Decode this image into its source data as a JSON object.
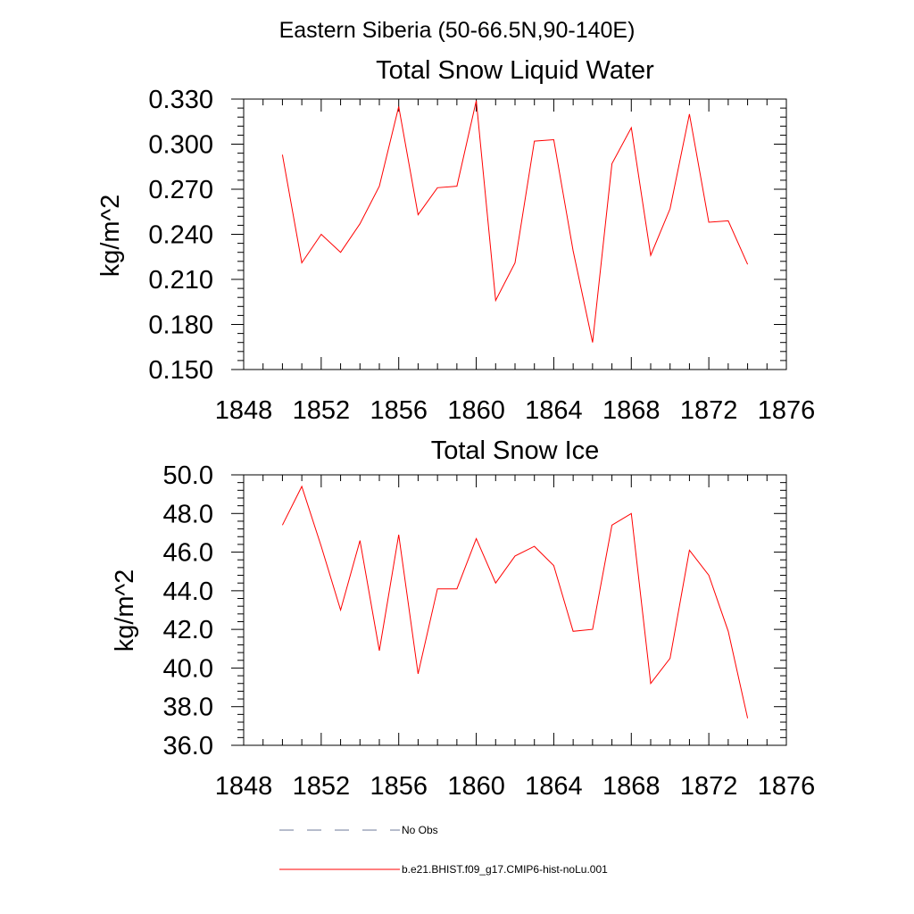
{
  "figure": {
    "title": "Eastern Siberia (50-66.5N,90-140E)"
  },
  "colors": {
    "series_line": "#ff0000",
    "obs_line": "#6c7a9a",
    "axis": "#000000"
  },
  "legend": {
    "items": [
      {
        "label": "No Obs",
        "color": "#6c7a9a",
        "style": "dashed"
      },
      {
        "label": "b.e21.BHIST.f09_g17.CMIP6-hist-noLu.001",
        "color": "#ff0000",
        "style": "solid"
      }
    ]
  },
  "chart_data": [
    {
      "type": "line",
      "title": "Total Snow Liquid Water",
      "xlabel": "",
      "ylabel": "kg/m^2",
      "xlim": [
        1848,
        1876
      ],
      "ylim": [
        0.15,
        0.33
      ],
      "x_ticks": [
        1848,
        1852,
        1856,
        1860,
        1864,
        1868,
        1872,
        1876
      ],
      "x_tick_labels": [
        "1848",
        "1852",
        "1856",
        "1860",
        "1864",
        "1868",
        "1872",
        "1876"
      ],
      "y_ticks": [
        0.15,
        0.18,
        0.21,
        0.24,
        0.27,
        0.3,
        0.33
      ],
      "y_tick_labels": [
        "0.150",
        "0.180",
        "0.210",
        "0.240",
        "0.270",
        "0.300",
        "0.330"
      ],
      "grid": false,
      "series": [
        {
          "name": "b.e21.BHIST.f09_g17.CMIP6-hist-noLu.001",
          "color": "#ff0000",
          "x": [
            1850,
            1851,
            1852,
            1853,
            1854,
            1855,
            1856,
            1857,
            1858,
            1859,
            1860,
            1861,
            1862,
            1863,
            1864,
            1865,
            1866,
            1867,
            1868,
            1869,
            1870,
            1871,
            1872,
            1873,
            1874
          ],
          "y": [
            0.293,
            0.221,
            0.24,
            0.228,
            0.247,
            0.272,
            0.325,
            0.253,
            0.271,
            0.272,
            0.329,
            0.196,
            0.221,
            0.302,
            0.303,
            0.229,
            0.168,
            0.287,
            0.311,
            0.226,
            0.257,
            0.32,
            0.248,
            0.249,
            0.22
          ]
        }
      ]
    },
    {
      "type": "line",
      "title": "Total Snow Ice",
      "xlabel": "",
      "ylabel": "kg/m^2",
      "xlim": [
        1848,
        1876
      ],
      "ylim": [
        36.0,
        50.0
      ],
      "x_ticks": [
        1848,
        1852,
        1856,
        1860,
        1864,
        1868,
        1872,
        1876
      ],
      "x_tick_labels": [
        "1848",
        "1852",
        "1856",
        "1860",
        "1864",
        "1868",
        "1872",
        "1876"
      ],
      "y_ticks": [
        36,
        38,
        40,
        42,
        44,
        46,
        48,
        50
      ],
      "y_tick_labels": [
        "36.0",
        "38.0",
        "40.0",
        "42.0",
        "44.0",
        "46.0",
        "48.0",
        "50.0"
      ],
      "grid": false,
      "series": [
        {
          "name": "b.e21.BHIST.f09_g17.CMIP6-hist-noLu.001",
          "color": "#ff0000",
          "x": [
            1850,
            1851,
            1852,
            1853,
            1854,
            1855,
            1856,
            1857,
            1858,
            1859,
            1860,
            1861,
            1862,
            1863,
            1864,
            1865,
            1866,
            1867,
            1868,
            1869,
            1870,
            1871,
            1872,
            1873,
            1874
          ],
          "y": [
            47.4,
            49.4,
            46.3,
            43.0,
            46.6,
            40.9,
            46.9,
            39.7,
            44.1,
            44.1,
            46.7,
            44.4,
            45.8,
            46.3,
            45.3,
            41.9,
            42.0,
            47.4,
            48.0,
            39.2,
            40.5,
            46.1,
            44.8,
            41.9,
            37.4
          ]
        }
      ]
    }
  ]
}
